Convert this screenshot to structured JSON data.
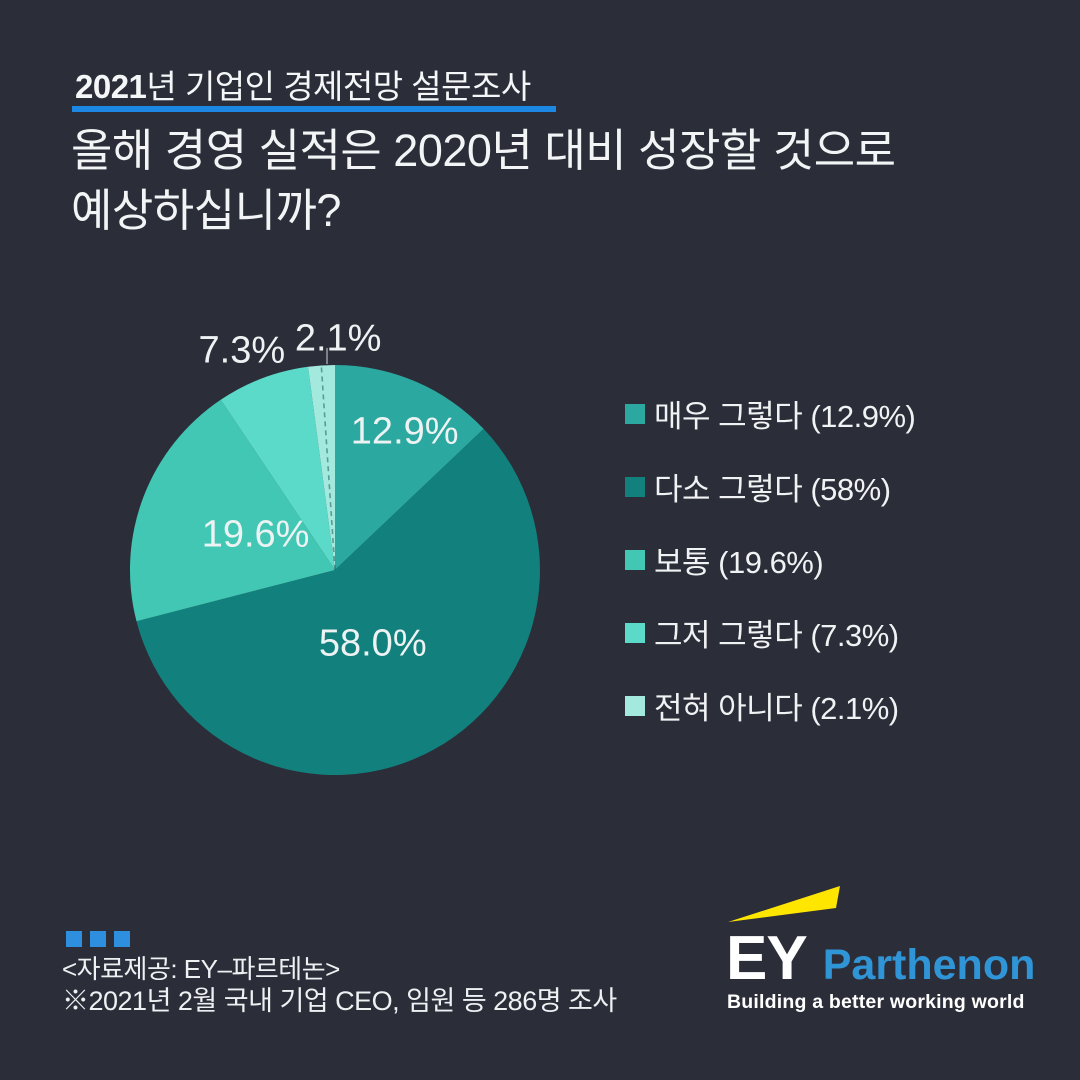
{
  "page": {
    "background": "#2b2d39"
  },
  "header": {
    "kicker_bold": "2021",
    "kicker_rest": "년 기업인 경제전망 설문조사",
    "underline_color": "#1d87e4",
    "question_line1": "올해 경영 실적은 2020년 대비 성장할 것으로",
    "question_line2": "예상하십니까?"
  },
  "chart_data": {
    "type": "pie",
    "title": "올해 경영 실적은 2020년 대비 성장할 것으로 예상하십니까?",
    "categories": [
      "매우 그렇다",
      "다소 그렇다",
      "보통",
      "그저 그렇다",
      "전혀 아니다"
    ],
    "values": [
      12.9,
      58.0,
      19.6,
      7.3,
      2.1
    ],
    "slice_labels": [
      "12.9%",
      "58.0%",
      "19.6%",
      "7.3%",
      "2.1%"
    ],
    "colors": [
      "#2ba89f",
      "#12807c",
      "#42c7b5",
      "#5bd9c9",
      "#a3e9de"
    ],
    "start_angle_deg": 0,
    "direction": "clockwise",
    "legend_position": "right",
    "legend": [
      {
        "label": "매우 그렇다 (12.9%)"
      },
      {
        "label": "다소 그렇다 (58%)"
      },
      {
        "label": "보통 (19.6%)"
      },
      {
        "label": "그저 그렇다 (7.3%)"
      },
      {
        "label": "전혀 아니다 (2.1%)"
      }
    ]
  },
  "footer": {
    "dots_color": "#2f8fdf",
    "source_line": "<자료제공: EY–파르테논>",
    "note_line": "※2021년 2월 국내 기업 CEO, 임원 등 286명 조사"
  },
  "logo": {
    "ey": "EY",
    "parthenon": "Parthenon",
    "parthenon_color": "#3095d6",
    "beam_color": "#ffe600",
    "tagline": "Building a better working world"
  }
}
